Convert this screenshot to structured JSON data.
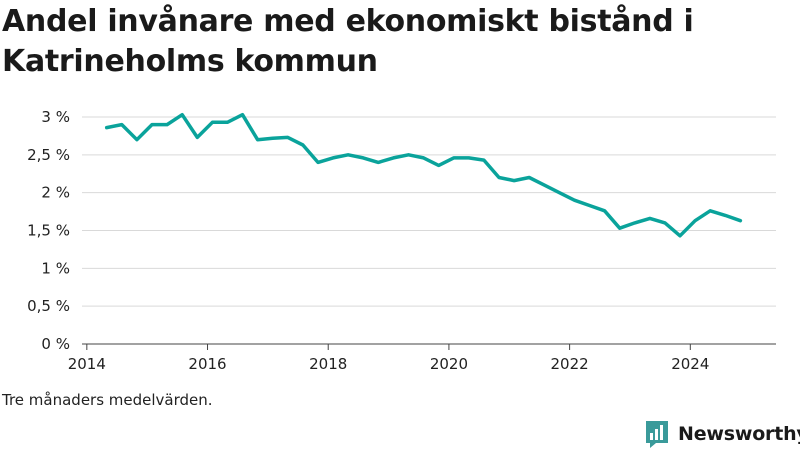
{
  "title": "Andel invånare med ekonomiskt bistånd i Katrineholms kommun",
  "note": "Tre månaders medelvärden.",
  "brand": {
    "name": "Newsworthy",
    "icon": "bar-chart-logo-icon",
    "color": "#3a9a9a"
  },
  "line_color": "#0aa39b",
  "chart_data": {
    "type": "line",
    "title": "Andel invånare med ekonomiskt bistånd i Katrineholms kommun",
    "xlabel": "",
    "ylabel": "",
    "xlim": [
      2013.92,
      2025.42
    ],
    "ylim": [
      0,
      3
    ],
    "xticks": [
      {
        "value": 2014,
        "label": "2014"
      },
      {
        "value": 2016,
        "label": "2016"
      },
      {
        "value": 2018,
        "label": "2018"
      },
      {
        "value": 2020,
        "label": "2020"
      },
      {
        "value": 2022,
        "label": "2022"
      },
      {
        "value": 2024,
        "label": "2024"
      }
    ],
    "yticks": [
      {
        "value": 0,
        "label": "0 %"
      },
      {
        "value": 0.5,
        "label": "0,5 %"
      },
      {
        "value": 1,
        "label": "1 %"
      },
      {
        "value": 1.5,
        "label": "1,5 %"
      },
      {
        "value": 2,
        "label": "2 %"
      },
      {
        "value": 2.5,
        "label": "2,5 %"
      },
      {
        "value": 3,
        "label": "3 %"
      }
    ],
    "grid": true,
    "series": [
      {
        "x": [
          2014.33,
          2014.58,
          2014.83,
          2015.08,
          2015.33,
          2015.58,
          2015.83,
          2016.08,
          2016.33,
          2016.58,
          2016.83,
          2017.08,
          2017.33,
          2017.58,
          2017.83,
          2018.08,
          2018.33,
          2018.58,
          2018.83,
          2019.08,
          2019.33,
          2019.58,
          2019.83,
          2020.08,
          2020.33,
          2020.58,
          2020.83,
          2021.08,
          2021.33,
          2021.58,
          2021.83,
          2022.08,
          2022.33,
          2022.58,
          2022.83,
          2023.08,
          2023.33,
          2023.58,
          2023.83,
          2024.08,
          2024.33,
          2024.58,
          2024.83
        ],
        "values": [
          2.86,
          2.9,
          2.7,
          2.9,
          2.9,
          3.03,
          2.73,
          2.93,
          2.93,
          3.03,
          2.7,
          2.72,
          2.73,
          2.63,
          2.4,
          2.46,
          2.5,
          2.46,
          2.4,
          2.46,
          2.5,
          2.46,
          2.36,
          2.46,
          2.46,
          2.43,
          2.2,
          2.16,
          2.2,
          2.1,
          2.0,
          1.9,
          1.83,
          1.76,
          1.53,
          1.6,
          1.66,
          1.6,
          1.43,
          1.63,
          1.76,
          1.7,
          1.63
        ]
      }
    ]
  }
}
